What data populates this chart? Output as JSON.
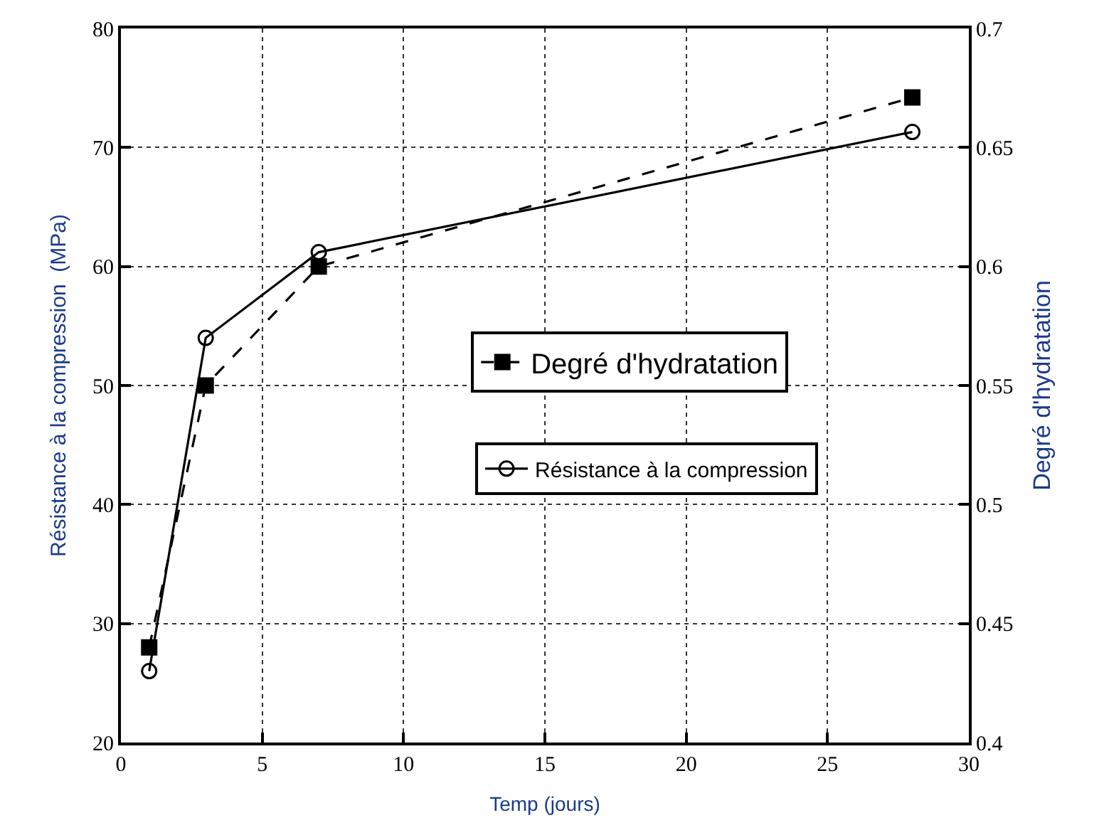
{
  "chart_data": {
    "type": "line",
    "xlabel": "Temp (jours)",
    "ylabel": "Résistance à la compression  (MPa)",
    "y2label": "Degré d'hydratation",
    "x": [
      1,
      3,
      7,
      28
    ],
    "series": [
      {
        "name": "Degré d'hydratation",
        "color": "#000000",
        "values": [
          0.44,
          0.55,
          0.6,
          0.671
        ],
        "axis": "y2",
        "marker": "square",
        "line_style": "dashed"
      },
      {
        "name": "Résistance à la compression",
        "color": "#000000",
        "values": [
          26,
          54,
          61.2,
          71.3
        ],
        "marker": "circle",
        "line_style": "solid"
      }
    ],
    "xlim": [
      0,
      30
    ],
    "xticks": [
      0,
      5,
      10,
      15,
      20,
      25,
      30
    ],
    "ylim": [
      20,
      80
    ],
    "yticks": [
      20,
      30,
      40,
      50,
      60,
      70,
      80
    ],
    "y2lim": [
      0.4,
      0.7
    ],
    "y2ticks": [
      0.4,
      0.45,
      0.5,
      0.55,
      0.6,
      0.65,
      0.7
    ],
    "grid": true,
    "legend": "center"
  }
}
